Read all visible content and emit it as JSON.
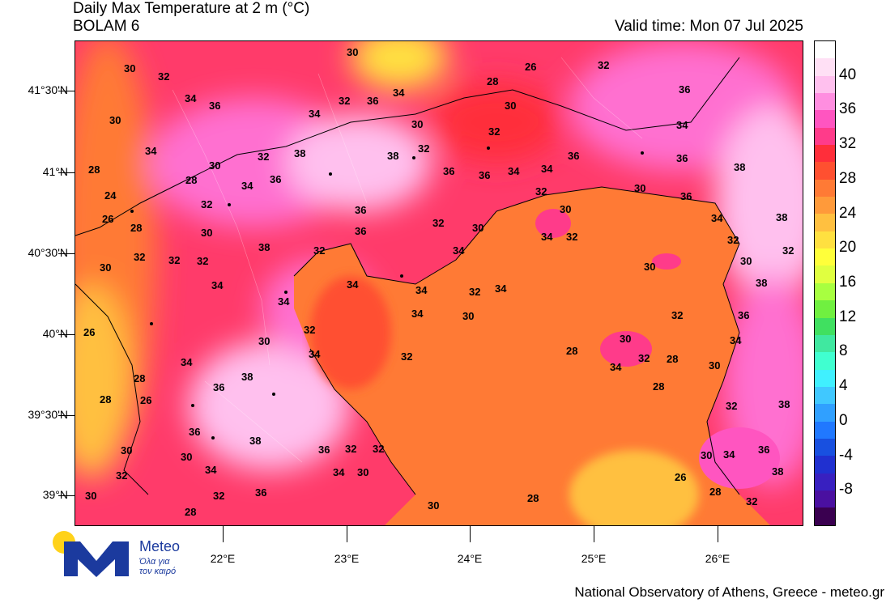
{
  "header": {
    "title": "Daily Max Temperature at 2 m (°C)",
    "model": "BOLAM 6",
    "valid_time": "Valid time: Mon 07 Jul 2025"
  },
  "axes": {
    "lat_labels": [
      "41°30'N",
      "41°N",
      "40°30'N",
      "40°N",
      "39°30'N",
      "39°N"
    ],
    "lon_labels": [
      "22°E",
      "23°E",
      "24°E",
      "25°E",
      "26°E"
    ]
  },
  "colorbar": {
    "labels": [
      "40",
      "36",
      "32",
      "28",
      "24",
      "20",
      "16",
      "12",
      "8",
      "4",
      "0",
      "-4",
      "-8"
    ],
    "colors": [
      "#ffffff",
      "#ffe0f5",
      "#ffc0ee",
      "#ff8ee0",
      "#ff55c0",
      "#ff3b8a",
      "#ff2e3a",
      "#ff5030",
      "#ff7a35",
      "#ff9a3a",
      "#ffc040",
      "#ffe040",
      "#ffff3a",
      "#e0ff40",
      "#a8ff40",
      "#70f040",
      "#40e060",
      "#40e8a0",
      "#40ffd0",
      "#40f0ff",
      "#40c8ff",
      "#30a0ff",
      "#2078ff",
      "#1850e0",
      "#2030d0",
      "#3820c0",
      "#4a10a0",
      "#3a0050"
    ]
  },
  "map_labels": {
    "values": [
      "30",
      "32",
      "34",
      "36",
      "38",
      "28",
      "26",
      "24"
    ]
  },
  "logo": {
    "name": "Meteo",
    "tagline_1": "Όλα για",
    "tagline_2": "τον καιρό"
  },
  "footer": {
    "credit": "National Observatory of Athens, Greece - meteo.gr"
  }
}
